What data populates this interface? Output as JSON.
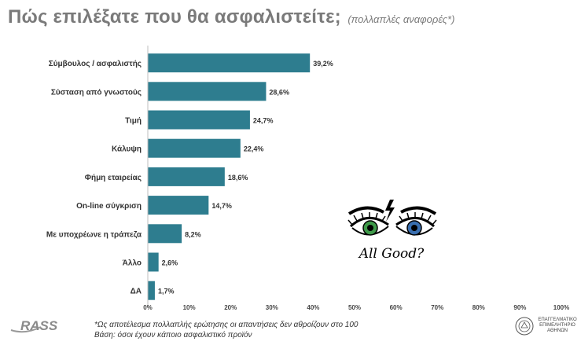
{
  "header": {
    "title": "Πώς επιλέξατε που θα ασφαλιστείτε;",
    "subtitle": "(πολλαπλές αναφορές*)"
  },
  "chart_data": {
    "type": "bar",
    "orientation": "horizontal",
    "categories": [
      "Σύμβουλος / ασφαλιστής",
      "Σύσταση από γνωστούς",
      "Τιμή",
      "Κάλυψη",
      "Φήμη εταιρείας",
      "On-line σύγκριση",
      "Με υποχρέωνε η τράπεζα",
      "Άλλο",
      "ΔΑ"
    ],
    "values": [
      39.2,
      28.6,
      24.7,
      22.4,
      18.6,
      14.7,
      8.2,
      2.6,
      1.7
    ],
    "value_labels": [
      "39,2%",
      "28,6%",
      "24,7%",
      "22,4%",
      "18,6%",
      "14,7%",
      "8,2%",
      "2,6%",
      "1,7%"
    ],
    "xlim": [
      0,
      100
    ],
    "x_ticks": [
      "0%",
      "10%",
      "20%",
      "30%",
      "40%",
      "50%",
      "60%",
      "70%",
      "80%",
      "90%",
      "100%"
    ],
    "grid": false,
    "bar_color": "#2e7d8f"
  },
  "footer": {
    "note_line1": "*Ως αποτέλεσμα πολλαπλής ερώτησης οι απαντήσεις δεν αθροίζουν στο 100",
    "note_line2": "Βάση: όσοι έχουν κάποιο ασφαλιστικό προϊόν",
    "logo_text": "RASS",
    "emblem_text_1": "ΕΠΑΓΓΕΛΜΑΤΙΚΟ",
    "emblem_text_2": "ΕΠΙΜΕΛΗΤΗΡΙΟ",
    "emblem_text_3": "ΑΘΗΝΩΝ"
  },
  "overlay": {
    "caption": "All Good?"
  }
}
